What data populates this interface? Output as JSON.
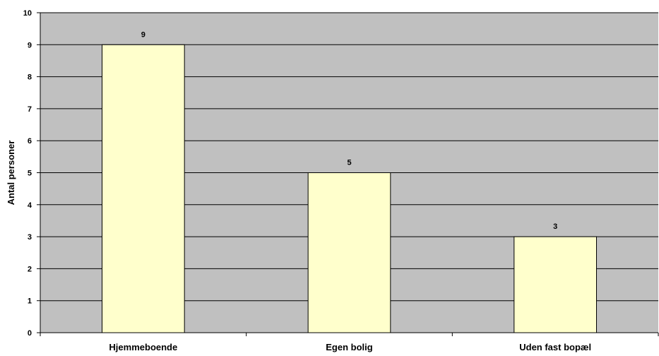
{
  "colors": {
    "plot_background": "#c0c0c0",
    "bar_fill": "#ffffcc",
    "bar_stroke": "#000000",
    "gridline": "#000000",
    "axis": "#000000"
  },
  "chart_data": {
    "type": "bar",
    "title": "",
    "xlabel": "",
    "ylabel": "Antal personer",
    "categories": [
      "Hjemmeboende",
      "Egen bolig",
      "Uden fast bopæl"
    ],
    "values": [
      9,
      5,
      3
    ],
    "data_labels": [
      "9",
      "5",
      "3"
    ],
    "ylim": [
      0,
      10
    ],
    "yticks": [
      "0",
      "1",
      "2",
      "3",
      "4",
      "5",
      "6",
      "7",
      "8",
      "9",
      "10"
    ],
    "grid": true,
    "legend": "none"
  }
}
